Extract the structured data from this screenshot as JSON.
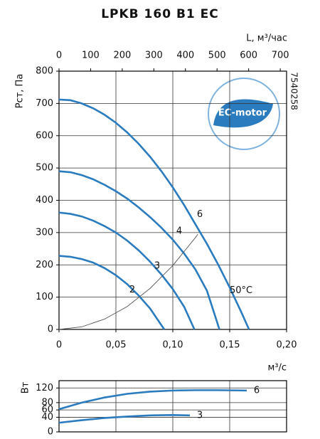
{
  "chart_data": [
    {
      "type": "line",
      "title": "LPKB 160 B1 EC",
      "model_code": "7540258",
      "badge": "EC-motor",
      "xlabel": "м³/с",
      "ylabel": "Рст, Па",
      "x2label": "L, м³/час",
      "xlim": [
        0,
        0.2
      ],
      "xticks": [
        0,
        {
          "value": 0.05,
          "label": "0,05"
        },
        {
          "value": 0.1,
          "label": "0,10"
        },
        {
          "value": 0.15,
          "label": "0,15"
        },
        {
          "value": 0.2,
          "label": "0,20"
        }
      ],
      "x2lim": [
        0,
        720
      ],
      "x2ticks": [
        0,
        100,
        200,
        300,
        400,
        500,
        600,
        700
      ],
      "ylim": [
        0,
        800
      ],
      "yticks": [
        0,
        100,
        200,
        300,
        400,
        500,
        600,
        700,
        800
      ],
      "grid": true,
      "annotations": [
        "50°C"
      ],
      "series": [
        {
          "name": "6",
          "color": "#2b7bbf",
          "x": [
            0,
            0.01,
            0.02,
            0.03,
            0.04,
            0.05,
            0.06,
            0.07,
            0.08,
            0.09,
            0.1,
            0.11,
            0.12,
            0.13,
            0.14,
            0.15,
            0.16,
            0.167
          ],
          "values": [
            712,
            710,
            700,
            685,
            665,
            640,
            610,
            575,
            535,
            490,
            440,
            385,
            325,
            265,
            200,
            130,
            55,
            0
          ]
        },
        {
          "name": "4",
          "color": "#2b7bbf",
          "x": [
            0,
            0.01,
            0.02,
            0.03,
            0.04,
            0.05,
            0.06,
            0.07,
            0.08,
            0.09,
            0.1,
            0.11,
            0.12,
            0.13,
            0.141
          ],
          "values": [
            490,
            487,
            478,
            465,
            448,
            428,
            405,
            378,
            348,
            315,
            278,
            235,
            185,
            120,
            0
          ]
        },
        {
          "name": "3",
          "color": "#2b7bbf",
          "x": [
            0,
            0.01,
            0.02,
            0.03,
            0.04,
            0.05,
            0.06,
            0.07,
            0.08,
            0.09,
            0.1,
            0.11,
            0.119
          ],
          "values": [
            362,
            358,
            350,
            337,
            320,
            300,
            275,
            245,
            210,
            170,
            125,
            70,
            0
          ]
        },
        {
          "name": "2",
          "color": "#2b7bbf",
          "x": [
            0,
            0.01,
            0.02,
            0.03,
            0.04,
            0.05,
            0.06,
            0.07,
            0.08,
            0.0925
          ],
          "values": [
            228,
            225,
            218,
            207,
            190,
            168,
            140,
            105,
            65,
            0
          ]
        },
        {
          "color": "#555555",
          "x": [
            0,
            0.02,
            0.04,
            0.06,
            0.08,
            0.1,
            0.12,
            0.122
          ],
          "values": [
            0,
            8,
            32,
            71,
            127,
            198,
            285,
            295
          ]
        }
      ]
    },
    {
      "type": "line",
      "ylabel": "Вт",
      "xlim": [
        0,
        0.2
      ],
      "ylim": [
        0,
        140
      ],
      "yticks": [
        0,
        40,
        60,
        80,
        120
      ],
      "grid": true,
      "series": [
        {
          "name": "6",
          "color": "#2b7bbf",
          "x": [
            0,
            0.02,
            0.04,
            0.06,
            0.08,
            0.1,
            0.12,
            0.14,
            0.165
          ],
          "values": [
            62,
            80,
            94,
            104,
            110,
            113,
            114,
            114,
            113
          ]
        },
        {
          "name": "3",
          "color": "#2b7bbf",
          "x": [
            0,
            0.02,
            0.04,
            0.06,
            0.08,
            0.1,
            0.115
          ],
          "values": [
            25,
            32,
            38,
            42,
            45,
            46,
            45
          ]
        }
      ]
    }
  ]
}
